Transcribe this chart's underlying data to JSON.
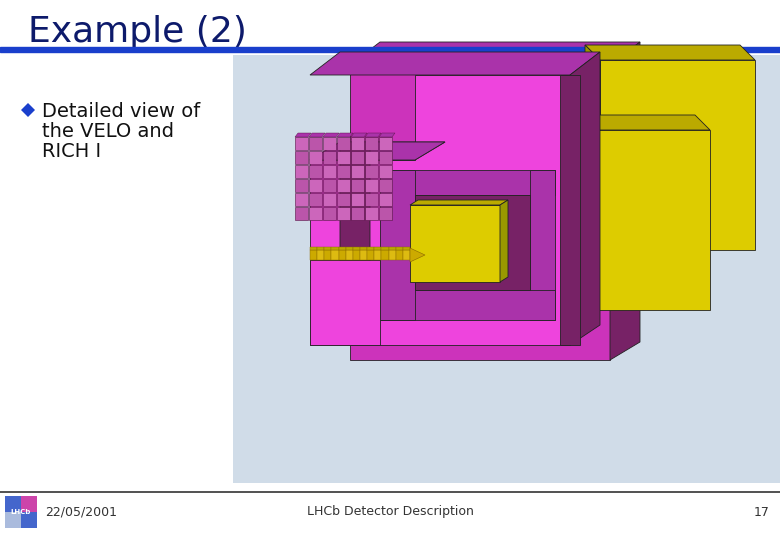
{
  "title": "Example (2)",
  "title_color": "#0d1a6b",
  "title_fontsize": 26,
  "title_font": "Comic Sans MS",
  "blue_bar_color": "#1a3fcc",
  "blue_bar_thickness": 5,
  "bullet_text_line1": "Detailed view of",
  "bullet_text_line2": "the VELO and",
  "bullet_text_line3": "RICH I",
  "bullet_color": "#1a3fcc",
  "bullet_fontsize": 14,
  "bullet_font": "Comic Sans MS",
  "footer_date": "22/05/2001",
  "footer_center": "LHCb Detector Description",
  "footer_page": "17",
  "footer_fontsize": 9,
  "footer_line_color": "#333333",
  "bg_color": "#ffffff",
  "image_bg_color": "#d0dce8",
  "magenta_face": "#ee44dd",
  "magenta_dark": "#772266",
  "magenta_mid": "#aa33aa",
  "yellow_face": "#ddcc00",
  "yellow_dark": "#999900",
  "yellow_mid": "#bbaa00"
}
